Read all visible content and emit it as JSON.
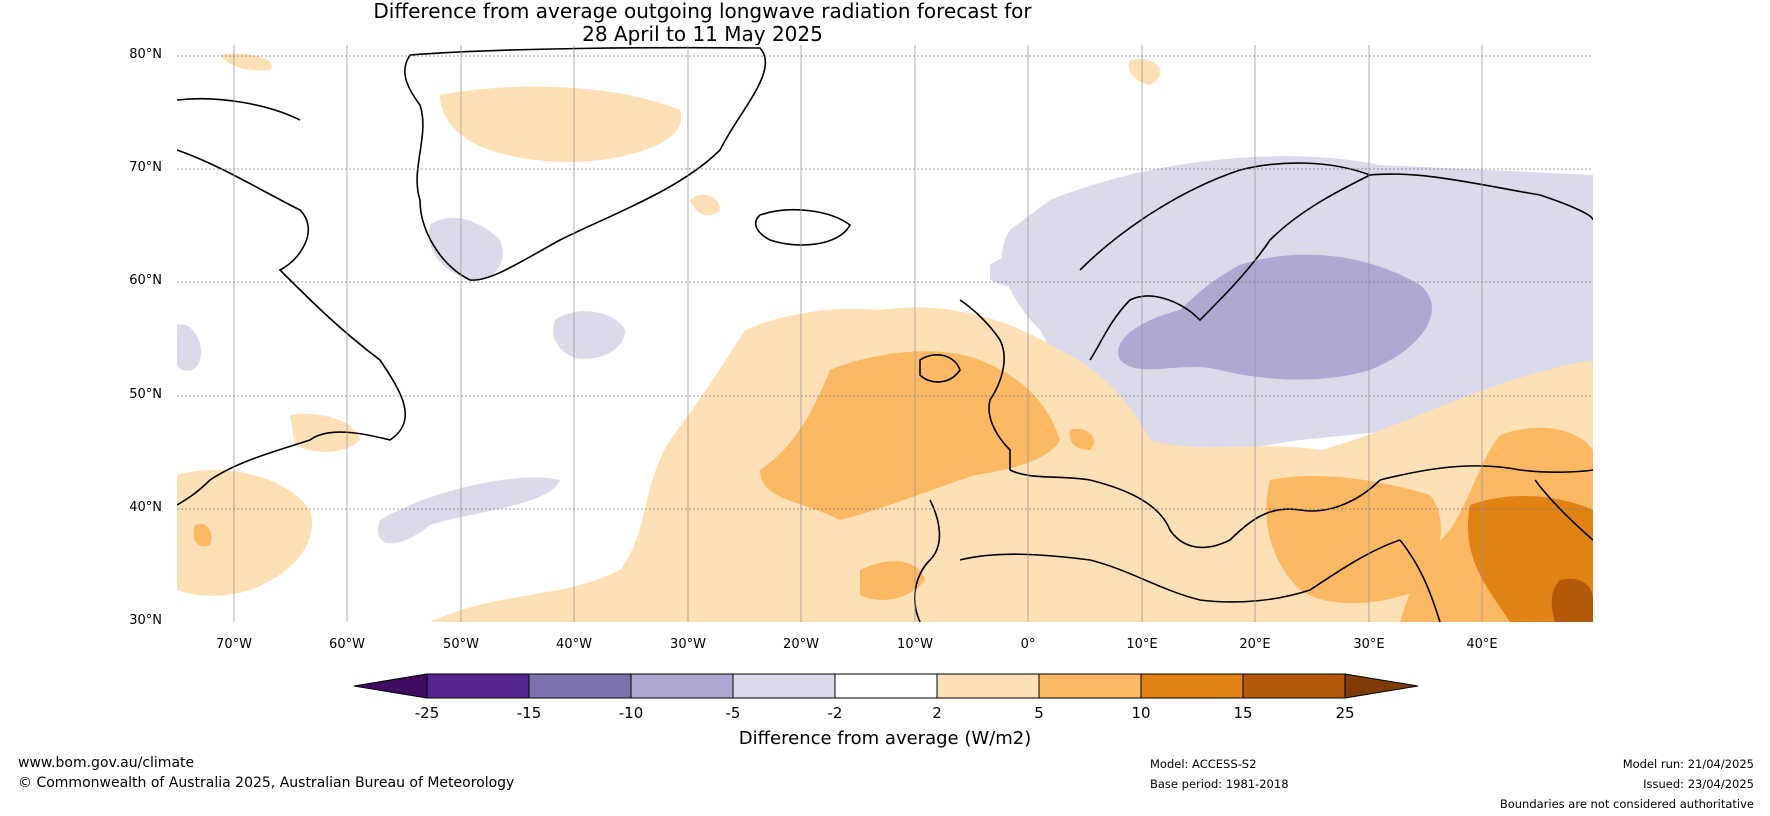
{
  "title_line1": "Difference from average outgoing longwave radiation forecast for",
  "title_line2": "28 April to 11 May 2025",
  "map": {
    "lat_labels": [
      "80°N",
      "70°N",
      "60°N",
      "50°N",
      "40°N",
      "30°N"
    ],
    "lon_labels": [
      "70°W",
      "60°W",
      "50°W",
      "40°W",
      "30°W",
      "20°W",
      "10°W",
      "0°",
      "10°E",
      "20°E",
      "30°E",
      "40°E"
    ],
    "extent": {
      "lon_min": -75,
      "lon_max": 50,
      "lat_min": 30,
      "lat_max": 81
    }
  },
  "colorbar": {
    "label": "Difference from average (W/m2)",
    "ticks": [
      "-25",
      "-15",
      "-10",
      "-5",
      "-2",
      "2",
      "5",
      "10",
      "15",
      "25"
    ],
    "colors": [
      "#3f0b63",
      "#54278f",
      "#7e72ae",
      "#afa6d2",
      "#dadaeb",
      "#ffffff",
      "#fde0b6",
      "#fdb863",
      "#e08214",
      "#b35806",
      "#7f3b08"
    ]
  },
  "footer": {
    "website": "www.bom.gov.au/climate",
    "copyright": "© Commonwealth of Australia 2025, Australian Bureau of Meteorology",
    "model": "Model: ACCESS-S2",
    "base_period": "Base period: 1981-2018",
    "model_run": "Model run: 21/04/2025",
    "issued": "Issued: 23/04/2025",
    "disclaimer": "Boundaries are not considered authoritative"
  }
}
